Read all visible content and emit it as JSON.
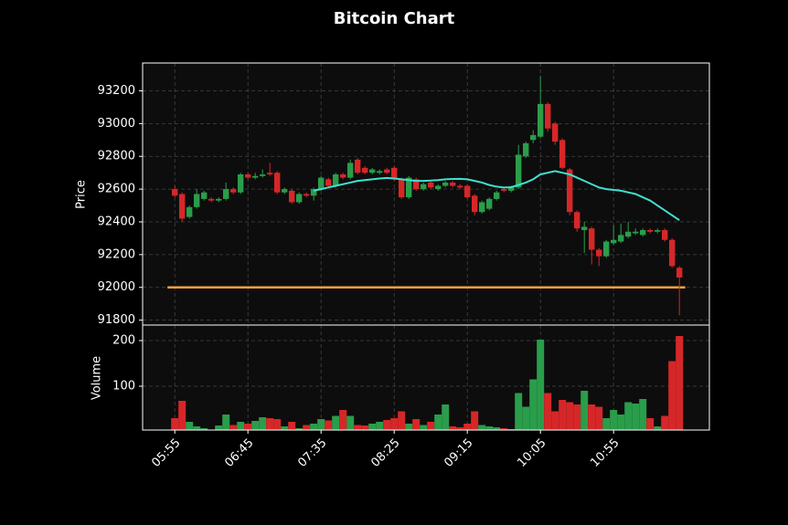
{
  "chart_data": {
    "type": "candlestick",
    "title": "Bitcoin Chart",
    "ylabel": "Price",
    "up_color": "#2a9d4a",
    "down_color": "#d62728",
    "grid": true,
    "xlim": [
      -4.4,
      73.1
    ],
    "xticks": [
      {
        "value": 0,
        "label": "05:55"
      },
      {
        "value": 10,
        "label": "06:45"
      },
      {
        "value": 20,
        "label": "07:35"
      },
      {
        "value": 30,
        "label": "08:25"
      },
      {
        "value": 40,
        "label": "09:15"
      },
      {
        "value": 50,
        "label": "10:05"
      },
      {
        "value": 60,
        "label": "10:55"
      }
    ],
    "ylim": [
      91770,
      93370
    ],
    "yticks": [
      91800,
      92000,
      92200,
      92400,
      92600,
      92800,
      93000,
      93200
    ],
    "open": [
      92600,
      92570,
      92430,
      92490,
      92540,
      92540,
      92530,
      92540,
      92600,
      92580,
      92690,
      92670,
      92680,
      92700,
      92700,
      92580,
      92590,
      92520,
      92570,
      92560,
      92600,
      92660,
      92620,
      92690,
      92670,
      92780,
      92730,
      92700,
      92700,
      92720,
      92730,
      92660,
      92550,
      92660,
      92600,
      92640,
      92600,
      92620,
      92640,
      92620,
      92620,
      92560,
      92460,
      92480,
      92540,
      92600,
      92590,
      92610,
      92800,
      92900,
      92920,
      93120,
      93000,
      92900,
      92720,
      92460,
      92350,
      92360,
      92230,
      92190,
      92270,
      92280,
      92310,
      92330,
      92320,
      92350,
      92340,
      92350,
      92290,
      92120
    ],
    "close": [
      92560,
      92420,
      92490,
      92570,
      92580,
      92530,
      92540,
      92600,
      92580,
      92690,
      92670,
      92680,
      92690,
      92690,
      92580,
      92600,
      92520,
      92570,
      92560,
      92600,
      92670,
      92620,
      92690,
      92670,
      92760,
      92700,
      92700,
      92720,
      92710,
      92700,
      92660,
      92550,
      92670,
      92600,
      92630,
      92610,
      92620,
      92640,
      92620,
      92610,
      92550,
      92460,
      92520,
      92540,
      92580,
      92590,
      92610,
      92810,
      92880,
      92930,
      93120,
      92970,
      92890,
      92730,
      92460,
      92360,
      92370,
      92230,
      92190,
      92280,
      92290,
      92320,
      92340,
      92340,
      92350,
      92340,
      92350,
      92290,
      92130,
      92060
    ],
    "high": [
      92620,
      92580,
      92500,
      92600,
      92590,
      92550,
      92550,
      92640,
      92610,
      92700,
      92700,
      92700,
      92720,
      92760,
      92710,
      92610,
      92600,
      92580,
      92580,
      92610,
      92680,
      92670,
      92700,
      92700,
      92780,
      92790,
      92740,
      92730,
      92720,
      92730,
      92740,
      92670,
      92680,
      92670,
      92640,
      92650,
      92630,
      92650,
      92650,
      92630,
      92630,
      92570,
      92530,
      92550,
      92590,
      92610,
      92620,
      92870,
      92890,
      92960,
      93290,
      93130,
      93010,
      92910,
      92730,
      92470,
      92400,
      92370,
      92240,
      92290,
      92380,
      92390,
      92400,
      92360,
      92360,
      92360,
      92360,
      92360,
      92300,
      92130
    ],
    "low": [
      92550,
      92400,
      92420,
      92480,
      92530,
      92520,
      92520,
      92530,
      92570,
      92570,
      92660,
      92660,
      92670,
      92680,
      92570,
      92570,
      92510,
      92510,
      92550,
      92530,
      92590,
      92610,
      92610,
      92660,
      92660,
      92690,
      92690,
      92690,
      92690,
      92690,
      92650,
      92540,
      92540,
      92590,
      92590,
      92600,
      92590,
      92610,
      92610,
      92600,
      92540,
      92440,
      92450,
      92470,
      92530,
      92580,
      92580,
      92600,
      92790,
      92880,
      92910,
      92950,
      92870,
      92720,
      92440,
      92340,
      92210,
      92140,
      92130,
      92180,
      92260,
      92270,
      92300,
      92320,
      92310,
      92330,
      92330,
      92280,
      92120,
      91830
    ],
    "series": [
      {
        "color": "#40e0d0",
        "values": [
          null,
          null,
          null,
          null,
          null,
          null,
          null,
          null,
          null,
          null,
          null,
          null,
          null,
          null,
          null,
          null,
          null,
          null,
          null,
          92590,
          92600,
          92610,
          92620,
          92630,
          92640,
          92650,
          92655,
          92660,
          92665,
          92668,
          92665,
          92660,
          92655,
          92650,
          92650,
          92652,
          92655,
          92660,
          92662,
          92663,
          92660,
          92650,
          92640,
          92625,
          92615,
          92610,
          92612,
          92625,
          92640,
          92660,
          92690,
          92700,
          92710,
          92700,
          92690,
          92670,
          92650,
          92630,
          92610,
          92600,
          92595,
          92590,
          92580,
          92570,
          92550,
          92530,
          92500,
          92470,
          92440,
          92410
        ]
      }
    ],
    "hline": {
      "value": 92000,
      "color": "#f4a340",
      "x": [
        -1,
        69.8
      ]
    },
    "volume": {
      "ylabel": "Volume",
      "ylim": [
        4,
        234
      ],
      "yticks": [
        100,
        200
      ],
      "values": [
        30,
        68,
        22,
        12,
        8,
        5,
        14,
        38,
        15,
        22,
        18,
        24,
        32,
        30,
        28,
        12,
        22,
        8,
        15,
        18,
        28,
        25,
        35,
        48,
        35,
        15,
        14,
        18,
        22,
        26,
        30,
        45,
        18,
        28,
        15,
        22,
        38,
        60,
        12,
        10,
        18,
        45,
        15,
        12,
        10,
        8,
        6,
        85,
        55,
        115,
        202,
        85,
        45,
        70,
        65,
        60,
        90,
        60,
        55,
        30,
        48,
        38,
        65,
        62,
        72,
        30,
        12,
        35,
        155,
        210
      ]
    }
  }
}
